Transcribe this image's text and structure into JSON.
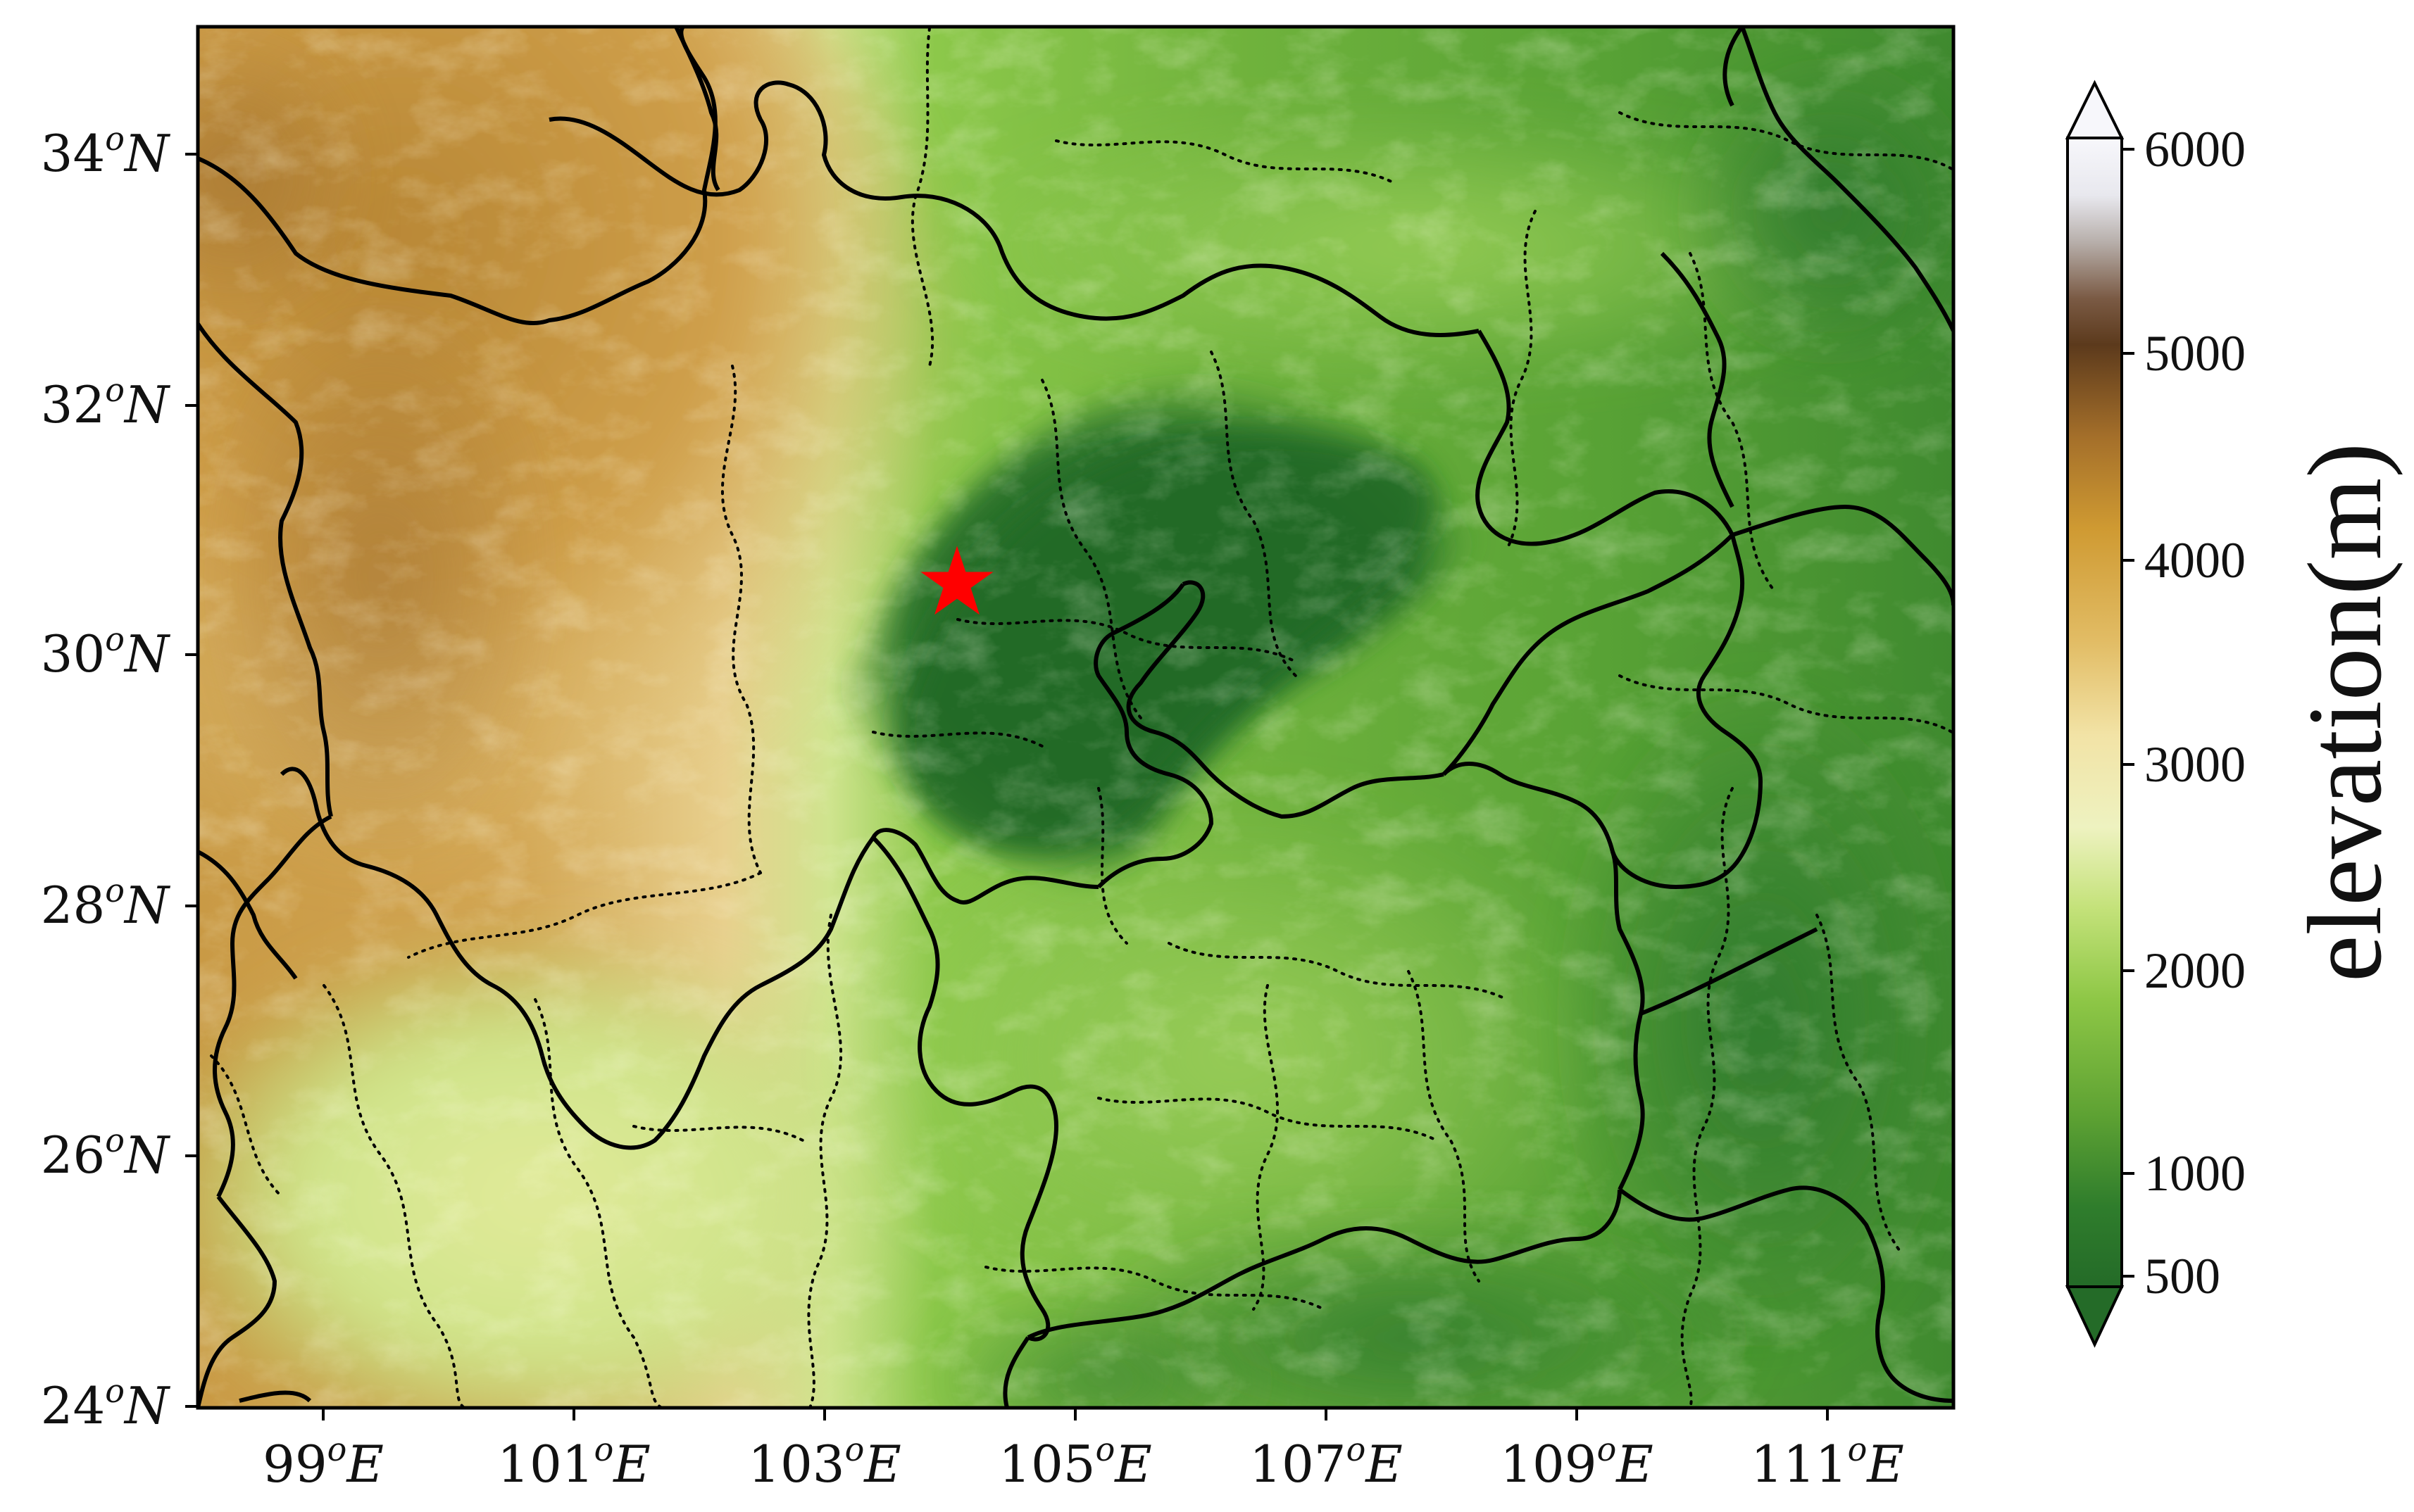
{
  "map": {
    "kind": "elevation map",
    "extent": {
      "lon_min": 98,
      "lon_max": 112,
      "lat_min": 24,
      "lat_max": 35
    },
    "lon_ticks": [
      {
        "value": 99,
        "deg": "99",
        "hemi": "E"
      },
      {
        "value": 101,
        "deg": "101",
        "hemi": "E"
      },
      {
        "value": 103,
        "deg": "103",
        "hemi": "E"
      },
      {
        "value": 105,
        "deg": "105",
        "hemi": "E"
      },
      {
        "value": 107,
        "deg": "107",
        "hemi": "E"
      },
      {
        "value": 109,
        "deg": "109",
        "hemi": "E"
      },
      {
        "value": 111,
        "deg": "111",
        "hemi": "E"
      }
    ],
    "lat_ticks": [
      {
        "value": 24,
        "deg": "24",
        "hemi": "N"
      },
      {
        "value": 26,
        "deg": "26",
        "hemi": "N"
      },
      {
        "value": 28,
        "deg": "28",
        "hemi": "N"
      },
      {
        "value": 30,
        "deg": "30",
        "hemi": "N"
      },
      {
        "value": 32,
        "deg": "32",
        "hemi": "N"
      },
      {
        "value": 34,
        "deg": "34",
        "hemi": "N"
      }
    ],
    "degree_symbol": "o",
    "marker": {
      "symbol": "star",
      "lon": 104.05,
      "lat": 30.67,
      "color": "#ff0000"
    },
    "boundaries": {
      "provincial": "solid black",
      "prefectural": "dotted black"
    }
  },
  "colorbar": {
    "label": "elevation(m)",
    "extend": "both",
    "ticks": [
      {
        "value": 500,
        "text": "500"
      },
      {
        "value": 1000,
        "text": "1000"
      },
      {
        "value": 2000,
        "text": "2000"
      },
      {
        "value": 3000,
        "text": "3000"
      },
      {
        "value": 4000,
        "text": "4000"
      },
      {
        "value": 5000,
        "text": "5000"
      },
      {
        "value": 6000,
        "text": "6000"
      }
    ],
    "colors": {
      "low": "#246b28",
      "mid_low": "#7cc23a",
      "mid": "#cfe98c",
      "pale": "#f6eec0",
      "tan": "#d9a64a",
      "high": "#5c3a1c",
      "top": "#f7f7fb"
    }
  }
}
